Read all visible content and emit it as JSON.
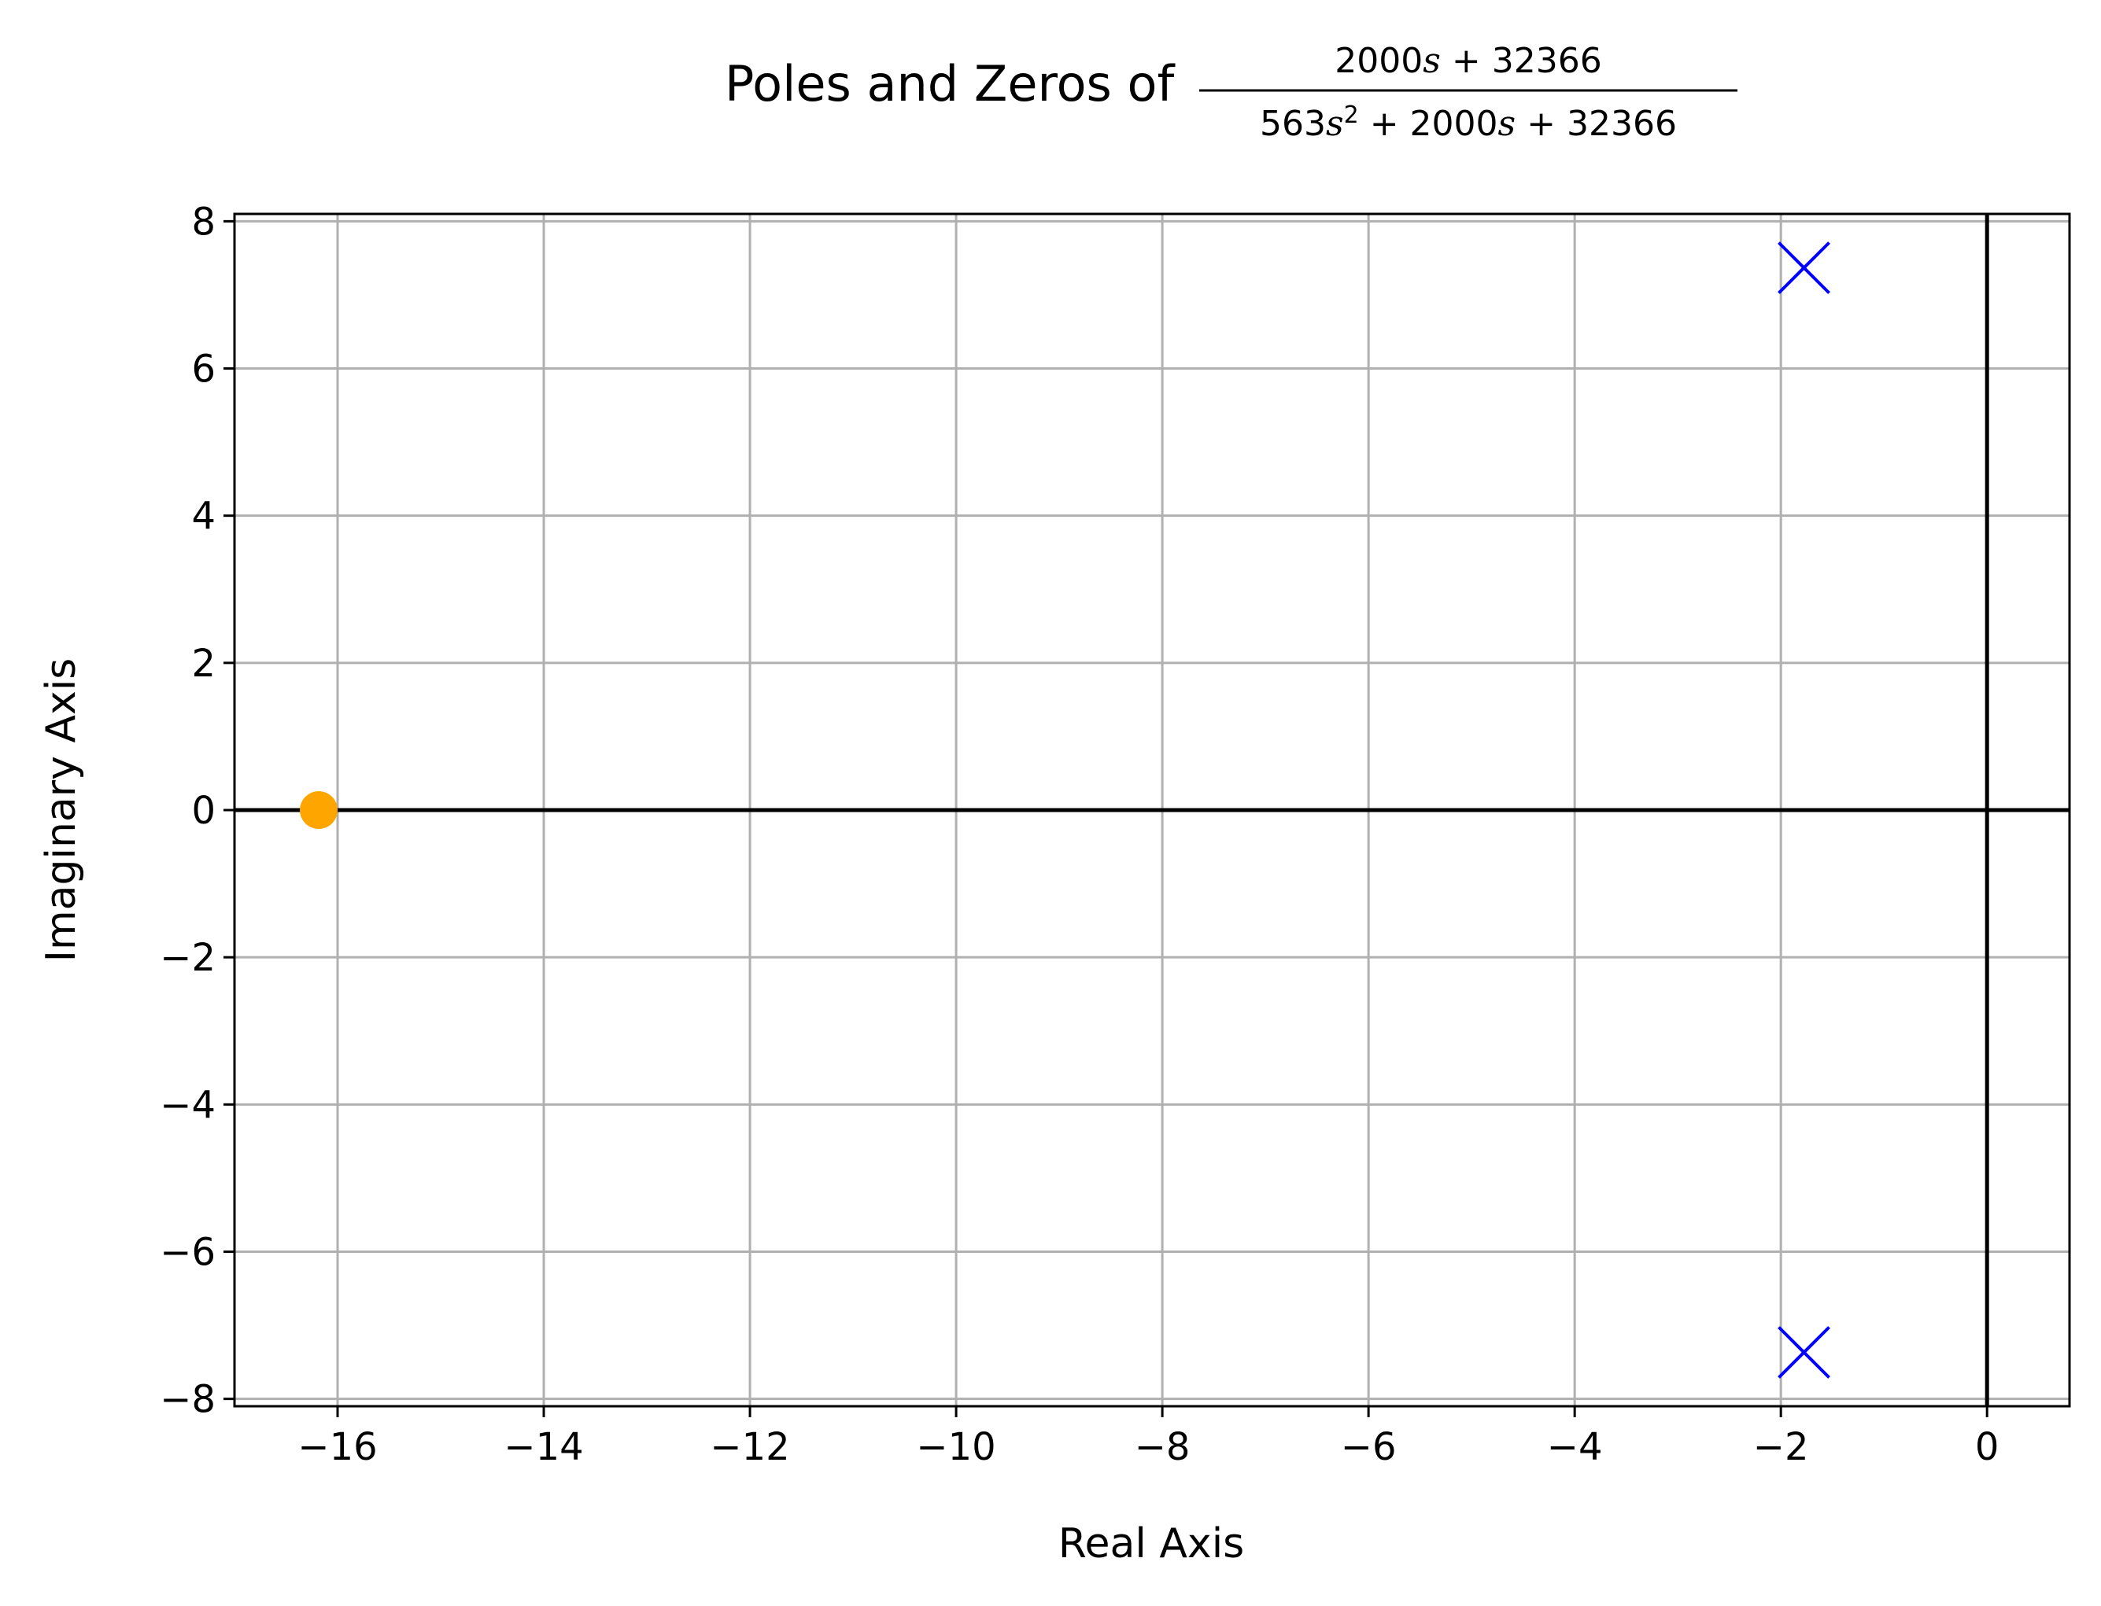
{
  "chart_data": {
    "type": "scatter",
    "title": {
      "prefix": "Poles and Zeros of ",
      "numerator": {
        "a": "2000",
        "var": "s",
        "rest": " + 32366"
      },
      "denominator": {
        "a": "563",
        "var": "s",
        "exp": "2",
        "rest": " + 2000",
        "var2": "s",
        "rest2": " + 32366"
      }
    },
    "xlabel": "Real Axis",
    "ylabel": "Imaginary Axis",
    "xlim": [
      -17.0,
      0.8
    ],
    "ylim": [
      -8.1,
      8.1
    ],
    "xticks": [
      -16,
      -14,
      -12,
      -10,
      -8,
      -6,
      -4,
      -2,
      0
    ],
    "xtick_labels": [
      "−16",
      "−14",
      "−12",
      "−10",
      "−8",
      "−6",
      "−4",
      "−2",
      "0"
    ],
    "yticks": [
      8,
      6,
      4,
      2,
      0,
      -2,
      -4,
      -6,
      -8
    ],
    "ytick_labels": [
      "8",
      "6",
      "4",
      "2",
      "0",
      "−2",
      "−4",
      "−6",
      "−8"
    ],
    "grid": true,
    "series": [
      {
        "marker": "x",
        "color": "#0000ff",
        "points": [
          {
            "x": -1.776,
            "y": 7.368
          },
          {
            "x": -1.776,
            "y": -7.368
          }
        ]
      },
      {
        "marker": "o",
        "color": "#ffa500",
        "points": [
          {
            "x": -16.183,
            "y": 0
          }
        ]
      }
    ],
    "reference_lines_color": "#000000",
    "grid_color": "#b0b0b0"
  }
}
